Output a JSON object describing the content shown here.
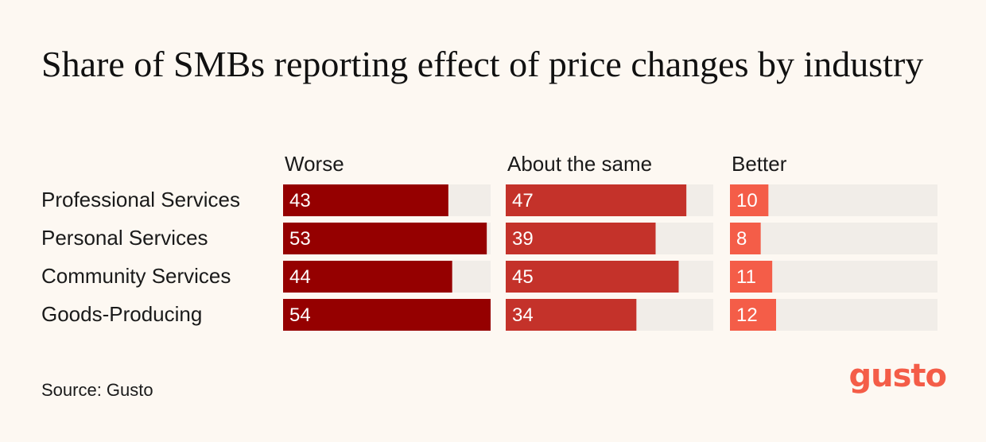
{
  "title": "Share of SMBs reporting effect of price changes by industry",
  "source": "Source: Gusto",
  "logo_text": "gusto",
  "chart_data": {
    "type": "bar",
    "orientation": "horizontal",
    "title": "Share of SMBs reporting effect of price changes by industry",
    "categories": [
      "Professional Services",
      "Personal Services",
      "Community Services",
      "Goods-Producing"
    ],
    "series": [
      {
        "name": "Worse",
        "values": [
          43,
          53,
          44,
          54
        ],
        "color": "#950000"
      },
      {
        "name": "About the same",
        "values": [
          47,
          39,
          45,
          34
        ],
        "color": "#c4322a"
      },
      {
        "name": "Better",
        "values": [
          10,
          8,
          11,
          12
        ],
        "color": "#f45d48"
      }
    ],
    "xlim": [
      0,
      54
    ],
    "track_color": "#f1ede8",
    "value_labels": true
  }
}
